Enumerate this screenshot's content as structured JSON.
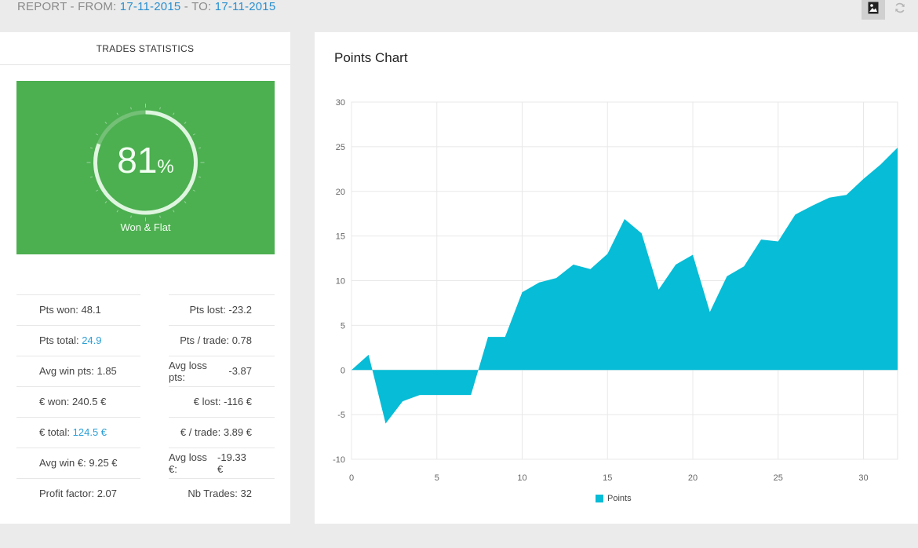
{
  "header": {
    "report_prefix": "REPORT - FROM: ",
    "from_date": "17-11-2015",
    "to_sep": " - TO: ",
    "to_date": "17-11-2015",
    "image_icon": "image-icon",
    "refresh_icon": "refresh-icon"
  },
  "stats_panel": {
    "title": "TRADES STATISTICS",
    "gauge": {
      "value": "81",
      "unit": "%",
      "label": "Won & Flat",
      "fraction": 0.81
    },
    "rows": [
      {
        "left_label": "Pts won: ",
        "left_value": "48.1",
        "right_label": "Pts lost: ",
        "right_value": "-23.2"
      },
      {
        "left_label": "Pts total: ",
        "left_value": "24.9",
        "right_label": "Pts / trade: ",
        "right_value": "0.78"
      },
      {
        "left_label": "Avg win pts: ",
        "left_value": "1.85",
        "right_label": "Avg loss pts: ",
        "right_value": "-3.87"
      },
      {
        "left_label": "€ won: ",
        "left_value": "240.5 €",
        "right_label": "€ lost: ",
        "right_value": "-116 €"
      },
      {
        "left_label": "€ total: ",
        "left_value": "124.5 €",
        "right_label": "€ / trade: ",
        "right_value": "3.89 €"
      },
      {
        "left_label": "Avg win €: ",
        "left_value": "9.25 €",
        "right_label": "Avg loss €: ",
        "right_value": "-19.33 €"
      },
      {
        "left_label": "Profit factor: ",
        "left_value": "2.07",
        "right_label": "Nb Trades: ",
        "right_value": "32"
      }
    ],
    "colors": {
      "card": "#4caf50",
      "highlight": "#2a9fd6"
    }
  },
  "chart_panel": {
    "title": "Points Chart",
    "legend_label": "Points"
  },
  "chart_data": {
    "type": "area",
    "title": "Points Chart",
    "xlabel": "",
    "ylabel": "",
    "xlim": [
      0,
      32
    ],
    "ylim": [
      -10,
      30
    ],
    "x_ticks": [
      0,
      5,
      10,
      15,
      20,
      25,
      30
    ],
    "y_ticks": [
      30,
      25,
      20,
      15,
      10,
      5,
      0,
      -5,
      -10
    ],
    "grid": true,
    "legend_position": "bottom",
    "series": [
      {
        "name": "Points",
        "color": "#06bcd6",
        "x": [
          0,
          1,
          2,
          3,
          4,
          5,
          6,
          7,
          8,
          9,
          10,
          11,
          12,
          13,
          14,
          15,
          16,
          17,
          18,
          19,
          20,
          21,
          22,
          23,
          24,
          25,
          26,
          27,
          28,
          29,
          30,
          31,
          32
        ],
        "values": [
          0,
          1.7,
          -6,
          -3.5,
          -2.8,
          -2.8,
          -2.8,
          -2.8,
          3.7,
          3.7,
          8.7,
          9.8,
          10.3,
          11.8,
          11.3,
          13,
          16.9,
          15.3,
          9,
          11.8,
          12.9,
          6.5,
          10.5,
          11.6,
          14.6,
          14.4,
          17.4,
          18.4,
          19.3,
          19.6,
          21.4,
          23,
          24.9
        ]
      }
    ]
  }
}
